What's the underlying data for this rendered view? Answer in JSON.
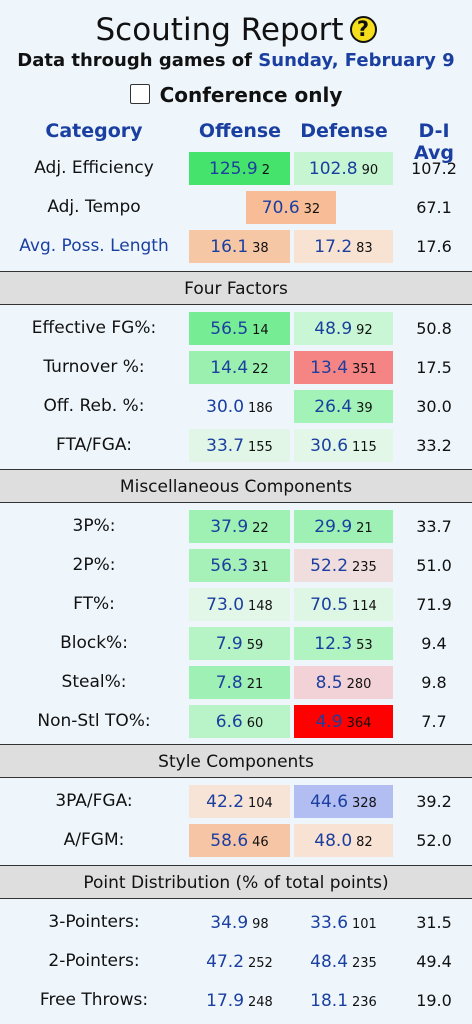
{
  "header": {
    "title": "Scouting Report",
    "help_glyph": "?",
    "subtitle_prefix": "Data through games of",
    "subtitle_date": "Sunday, February 9",
    "conference_label": "Conference only",
    "conference_checked": false
  },
  "columns": {
    "category": "Category",
    "offense": "Offense",
    "defense": "Defense",
    "avg": "D-I Avg"
  },
  "colors": {
    "link": "#1a3fa0",
    "section_bg": "#dedede",
    "page_bg": "#eef6fc"
  },
  "top": [
    {
      "label": "Adj. Efficiency",
      "link": false,
      "off": {
        "v": "125.9",
        "r": "2",
        "color": "#45e36c"
      },
      "def": {
        "v": "102.8",
        "r": "90",
        "color": "#c6f5d2"
      },
      "avg": "107.2"
    },
    {
      "label": "Adj. Tempo",
      "link": false,
      "tempo": {
        "v": "70.6",
        "r": "32",
        "color": "#f8bc96"
      },
      "avg": "67.1"
    },
    {
      "label": "Avg. Poss. Length",
      "link": true,
      "off": {
        "v": "16.1",
        "r": "38",
        "color": "#f6c7a5"
      },
      "def": {
        "v": "17.2",
        "r": "83",
        "color": "#f8e2d2"
      },
      "avg": "17.6"
    }
  ],
  "sections": [
    {
      "title": "Four Factors",
      "rows": [
        {
          "label": "Effective FG%:",
          "off": {
            "v": "56.5",
            "r": "14",
            "color": "#76ec95"
          },
          "def": {
            "v": "48.9",
            "r": "92",
            "color": "#c9f6d4"
          },
          "avg": "50.8"
        },
        {
          "label": "Turnover %:",
          "off": {
            "v": "14.4",
            "r": "22",
            "color": "#9bf0b0"
          },
          "def": {
            "v": "13.4",
            "r": "351",
            "color": "#f58585"
          },
          "avg": "17.5"
        },
        {
          "label": "Off. Reb. %:",
          "off": {
            "v": "30.0",
            "r": "186",
            "color": ""
          },
          "def": {
            "v": "26.4",
            "r": "39",
            "color": "#a3f2b7"
          },
          "avg": "30.0"
        },
        {
          "label": "FTA/FGA:",
          "off": {
            "v": "33.7",
            "r": "155",
            "color": "#e2f6e7"
          },
          "def": {
            "v": "30.6",
            "r": "115",
            "color": "#e2f7e8"
          },
          "avg": "33.2"
        }
      ]
    },
    {
      "title": "Miscellaneous Components",
      "rows": [
        {
          "label": "3P%:",
          "off": {
            "v": "37.9",
            "r": "22",
            "color": "#9ef0b3"
          },
          "def": {
            "v": "29.9",
            "r": "21",
            "color": "#9ff0b4"
          },
          "avg": "33.7"
        },
        {
          "label": "2P%:",
          "off": {
            "v": "56.3",
            "r": "31",
            "color": "#a6f1b8"
          },
          "def": {
            "v": "52.2",
            "r": "235",
            "color": "#f0dede"
          },
          "avg": "51.0"
        },
        {
          "label": "FT%:",
          "off": {
            "v": "73.0",
            "r": "148",
            "color": "#e3f7e9"
          },
          "def": {
            "v": "70.5",
            "r": "114",
            "color": "#def6e4"
          },
          "avg": "71.9"
        },
        {
          "label": "Block%:",
          "off": {
            "v": "7.9",
            "r": "59",
            "color": "#b6f4c5"
          },
          "def": {
            "v": "12.3",
            "r": "53",
            "color": "#b2f3c2"
          },
          "avg": "9.4"
        },
        {
          "label": "Steal%:",
          "off": {
            "v": "7.8",
            "r": "21",
            "color": "#9ff0b4"
          },
          "def": {
            "v": "8.5",
            "r": "280",
            "color": "#f2d2d6"
          },
          "avg": "9.8"
        },
        {
          "label": "Non-Stl TO%:",
          "off": {
            "v": "6.6",
            "r": "60",
            "color": "#b9f4c8"
          },
          "def": {
            "v": "4.9",
            "r": "364",
            "color": "#ff0000"
          },
          "avg": "7.7"
        }
      ]
    },
    {
      "title": "Style Components",
      "rows": [
        {
          "label": "3PA/FGA:",
          "off": {
            "v": "42.2",
            "r": "104",
            "color": "#f8e4d6"
          },
          "def": {
            "v": "44.6",
            "r": "328",
            "color": "#b2bdf2"
          },
          "avg": "39.2"
        },
        {
          "label": "A/FGM:",
          "off": {
            "v": "58.6",
            "r": "46",
            "color": "#f6c5a6"
          },
          "def": {
            "v": "48.0",
            "r": "82",
            "color": "#f8e2d3"
          },
          "avg": "52.0"
        }
      ]
    },
    {
      "title": "Point Distribution (% of total points)",
      "rows": [
        {
          "label": "3-Pointers:",
          "off": {
            "v": "34.9",
            "r": "98",
            "color": ""
          },
          "def": {
            "v": "33.6",
            "r": "101",
            "color": ""
          },
          "avg": "31.5"
        },
        {
          "label": "2-Pointers:",
          "off": {
            "v": "47.2",
            "r": "252",
            "color": ""
          },
          "def": {
            "v": "48.4",
            "r": "235",
            "color": ""
          },
          "avg": "49.4"
        },
        {
          "label": "Free Throws:",
          "off": {
            "v": "17.9",
            "r": "248",
            "color": ""
          },
          "def": {
            "v": "18.1",
            "r": "236",
            "color": ""
          },
          "avg": "19.0"
        }
      ]
    }
  ]
}
